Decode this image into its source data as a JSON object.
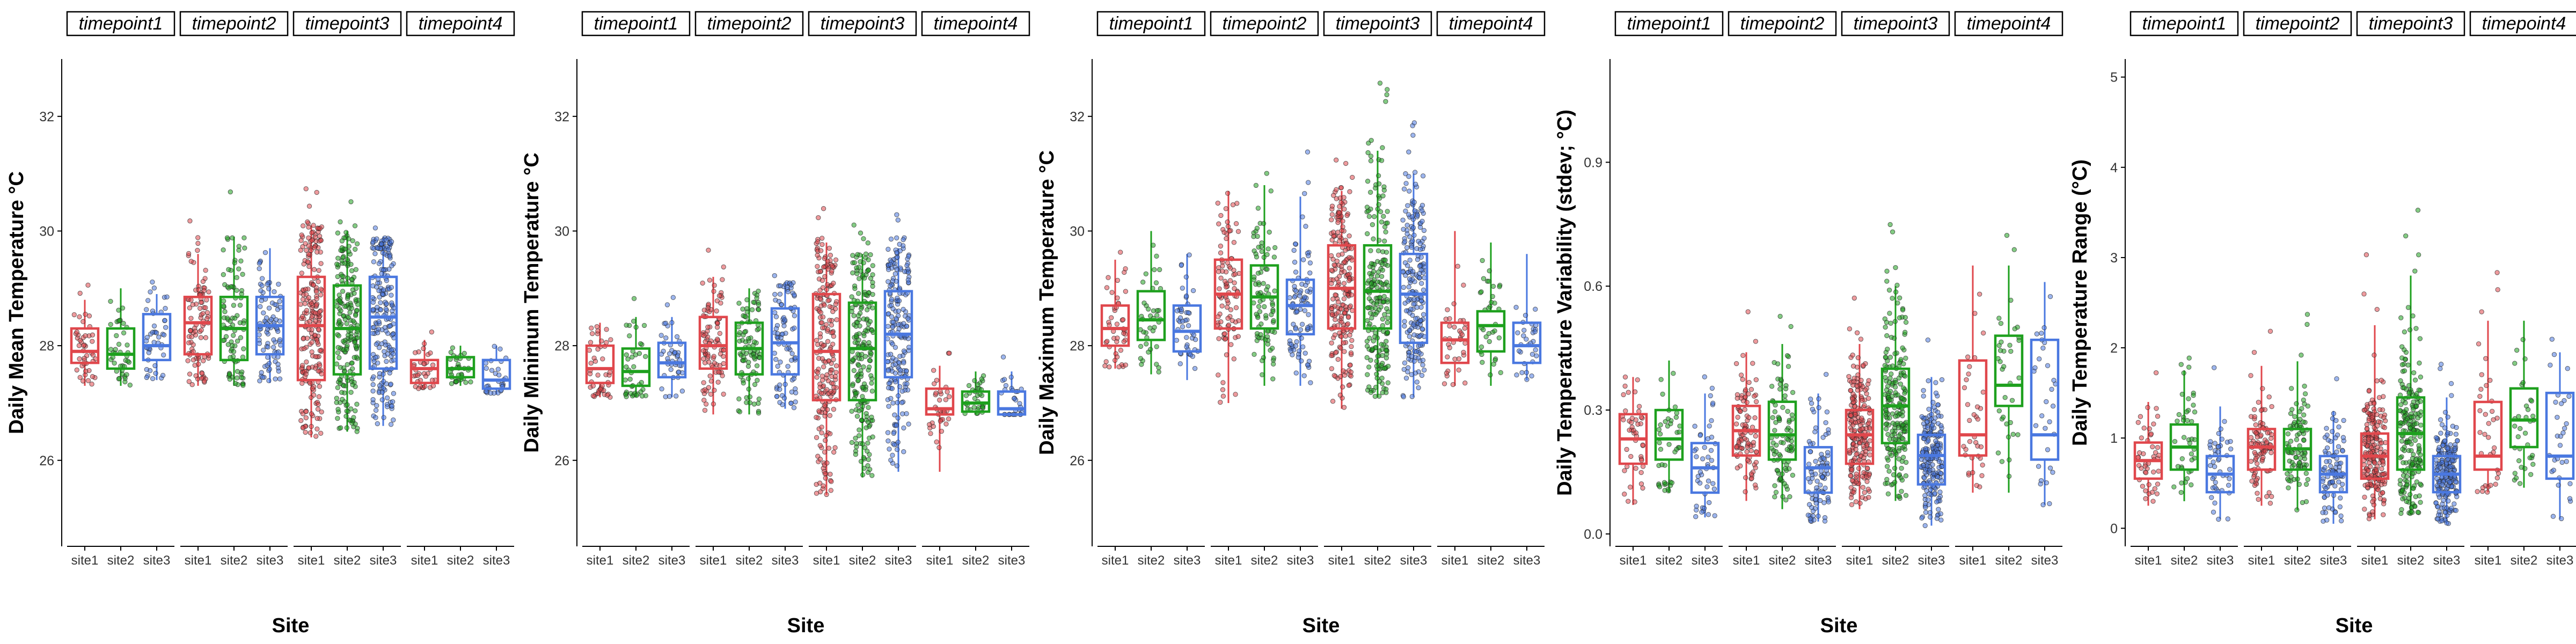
{
  "colors": {
    "site1": "#E0474C",
    "site2": "#1EA01E",
    "site3": "#4A78E0",
    "axis": "#000000",
    "strip_border": "#000000"
  },
  "chart_data": [
    {
      "type": "boxplot",
      "ylabel": "Daily Mean Temperature °C",
      "xlabel": "Site",
      "ylim": [
        24.5,
        33.0
      ],
      "yticks": [
        26,
        28,
        30,
        32
      ],
      "ytick_labels": [
        "26",
        "28",
        "30",
        "32"
      ],
      "facets": [
        "timepoint1",
        "timepoint2",
        "timepoint3",
        "timepoint4"
      ],
      "sites": [
        "site1",
        "site2",
        "site3"
      ],
      "boxes": [
        [
          [
            27.3,
            27.7,
            27.9,
            28.3,
            28.8
          ],
          [
            27.3,
            27.6,
            27.85,
            28.3,
            29.0
          ],
          [
            27.4,
            27.75,
            28.0,
            28.55,
            28.9
          ]
        ],
        [
          [
            27.3,
            27.85,
            28.4,
            28.85,
            29.6
          ],
          [
            27.3,
            27.75,
            28.3,
            28.85,
            29.9
          ],
          [
            27.35,
            27.85,
            28.35,
            28.85,
            29.7
          ]
        ],
        [
          [
            26.4,
            27.4,
            28.35,
            29.2,
            30.1
          ],
          [
            26.5,
            27.5,
            28.3,
            29.05,
            30.0
          ],
          [
            26.6,
            27.6,
            28.5,
            29.2,
            29.9
          ]
        ],
        [
          [
            27.25,
            27.35,
            27.6,
            27.75,
            28.1
          ],
          [
            27.3,
            27.45,
            27.6,
            27.8,
            28.0
          ],
          [
            27.15,
            27.25,
            27.4,
            27.75,
            28.0
          ]
        ]
      ],
      "points_per_box": [
        [
          45,
          40,
          45
        ],
        [
          95,
          90,
          90
        ],
        [
          210,
          205,
          205
        ],
        [
          35,
          35,
          30
        ]
      ]
    },
    {
      "type": "boxplot",
      "ylabel": "Daily Minimum Temperature °C",
      "xlabel": "Site",
      "ylim": [
        24.5,
        33.0
      ],
      "yticks": [
        26,
        28,
        30,
        32
      ],
      "ytick_labels": [
        "26",
        "28",
        "30",
        "32"
      ],
      "facets": [
        "timepoint1",
        "timepoint2",
        "timepoint3",
        "timepoint4"
      ],
      "sites": [
        "site1",
        "site2",
        "site3"
      ],
      "boxes": [
        [
          [
            27.1,
            27.35,
            27.6,
            28.0,
            28.4
          ],
          [
            27.1,
            27.3,
            27.55,
            27.95,
            28.5
          ],
          [
            27.1,
            27.45,
            27.7,
            28.05,
            28.5
          ]
        ],
        [
          [
            26.8,
            27.6,
            28.0,
            28.5,
            29.2
          ],
          [
            26.8,
            27.5,
            27.95,
            28.4,
            29.0
          ],
          [
            26.9,
            27.5,
            28.05,
            28.65,
            29.1
          ]
        ],
        [
          [
            25.4,
            27.05,
            27.9,
            28.9,
            29.8
          ],
          [
            25.7,
            27.05,
            27.95,
            28.75,
            29.6
          ],
          [
            25.8,
            27.45,
            28.2,
            28.95,
            29.7
          ]
        ],
        [
          [
            25.8,
            26.8,
            26.9,
            27.25,
            27.65
          ],
          [
            26.8,
            26.85,
            27.0,
            27.2,
            27.55
          ],
          [
            26.8,
            26.8,
            26.9,
            27.2,
            27.55
          ]
        ]
      ],
      "points_per_box": [
        [
          45,
          40,
          45
        ],
        [
          95,
          90,
          90
        ],
        [
          210,
          205,
          205
        ],
        [
          35,
          35,
          30
        ]
      ]
    },
    {
      "type": "boxplot",
      "ylabel": "Daily Maximum Temperature °C",
      "xlabel": "Site",
      "ylim": [
        24.5,
        33.0
      ],
      "yticks": [
        26,
        28,
        30,
        32
      ],
      "ytick_labels": [
        "26",
        "28",
        "30",
        "32"
      ],
      "facets": [
        "timepoint1",
        "timepoint2",
        "timepoint3",
        "timepoint4"
      ],
      "sites": [
        "site1",
        "site2",
        "site3"
      ],
      "boxes": [
        [
          [
            27.6,
            28.0,
            28.3,
            28.7,
            29.5
          ],
          [
            27.5,
            28.1,
            28.45,
            28.95,
            30.0
          ],
          [
            27.4,
            27.9,
            28.25,
            28.7,
            29.6
          ]
        ],
        [
          [
            27.0,
            28.3,
            28.9,
            29.5,
            30.7
          ],
          [
            27.3,
            28.3,
            28.85,
            29.4,
            30.8
          ],
          [
            27.3,
            28.2,
            28.7,
            29.15,
            30.6
          ]
        ],
        [
          [
            26.9,
            28.3,
            29.0,
            29.75,
            30.7
          ],
          [
            27.1,
            28.3,
            28.95,
            29.75,
            31.4
          ],
          [
            27.1,
            28.05,
            28.9,
            29.6,
            31.0
          ]
        ],
        [
          [
            27.3,
            27.7,
            28.1,
            28.4,
            30.0
          ],
          [
            27.3,
            27.9,
            28.35,
            28.6,
            29.8
          ],
          [
            27.4,
            27.7,
            28.0,
            28.4,
            29.6
          ]
        ]
      ],
      "points_per_box": [
        [
          45,
          40,
          45
        ],
        [
          95,
          90,
          90
        ],
        [
          210,
          205,
          205
        ],
        [
          35,
          35,
          30
        ]
      ]
    },
    {
      "type": "boxplot",
      "ylabel": "Daily Temperature Variability (stdev; °C)",
      "xlabel": "Site",
      "ylim": [
        -0.03,
        1.15
      ],
      "yticks": [
        0.0,
        0.3,
        0.6,
        0.9
      ],
      "ytick_labels": [
        "0.0",
        "0.3",
        "0.6",
        "0.9"
      ],
      "facets": [
        "timepoint1",
        "timepoint2",
        "timepoint3",
        "timepoint4"
      ],
      "sites": [
        "site1",
        "site2",
        "site3"
      ],
      "boxes": [
        [
          [
            0.07,
            0.17,
            0.23,
            0.29,
            0.38
          ],
          [
            0.1,
            0.18,
            0.23,
            0.3,
            0.42
          ],
          [
            0.04,
            0.1,
            0.16,
            0.22,
            0.34
          ]
        ],
        [
          [
            0.08,
            0.19,
            0.25,
            0.31,
            0.44
          ],
          [
            0.06,
            0.18,
            0.24,
            0.32,
            0.46
          ],
          [
            0.03,
            0.1,
            0.16,
            0.21,
            0.34
          ]
        ],
        [
          [
            0.06,
            0.17,
            0.24,
            0.3,
            0.46
          ],
          [
            0.08,
            0.22,
            0.31,
            0.4,
            0.6
          ],
          [
            0.02,
            0.12,
            0.19,
            0.24,
            0.38
          ]
        ],
        [
          [
            0.1,
            0.19,
            0.24,
            0.42,
            0.65
          ],
          [
            0.1,
            0.31,
            0.36,
            0.48,
            0.65
          ],
          [
            0.07,
            0.18,
            0.24,
            0.47,
            0.61
          ]
        ]
      ],
      "points_per_box": [
        [
          45,
          40,
          45
        ],
        [
          95,
          90,
          90
        ],
        [
          210,
          205,
          205
        ],
        [
          35,
          35,
          30
        ]
      ]
    },
    {
      "type": "boxplot",
      "ylabel": "Daily Temperature Range (°C)",
      "xlabel": "Site",
      "ylim": [
        -0.2,
        5.2
      ],
      "yticks": [
        0,
        1,
        2,
        3,
        4,
        5
      ],
      "ytick_labels": [
        "0",
        "1",
        "2",
        "3",
        "4",
        "5"
      ],
      "facets": [
        "timepoint1",
        "timepoint2",
        "timepoint3",
        "timepoint4"
      ],
      "sites": [
        "site1",
        "site2",
        "site3"
      ],
      "boxes": [
        [
          [
            0.25,
            0.55,
            0.75,
            0.95,
            1.4
          ],
          [
            0.3,
            0.65,
            0.9,
            1.15,
            1.75
          ],
          [
            0.1,
            0.4,
            0.6,
            0.8,
            1.35
          ]
        ],
        [
          [
            0.25,
            0.65,
            0.9,
            1.1,
            1.8
          ],
          [
            0.2,
            0.65,
            0.88,
            1.1,
            1.85
          ],
          [
            0.05,
            0.4,
            0.6,
            0.8,
            1.3
          ]
        ],
        [
          [
            0.1,
            0.55,
            0.8,
            1.05,
            2.25
          ],
          [
            0.15,
            0.65,
            1.05,
            1.45,
            2.8
          ],
          [
            0.05,
            0.4,
            0.6,
            0.8,
            1.45
          ]
        ],
        [
          [
            0.4,
            0.65,
            0.8,
            1.4,
            2.3
          ],
          [
            0.45,
            0.9,
            1.2,
            1.55,
            2.3
          ],
          [
            0.1,
            0.55,
            0.8,
            1.5,
            1.95
          ]
        ]
      ],
      "points_per_box": [
        [
          45,
          40,
          45
        ],
        [
          95,
          90,
          90
        ],
        [
          210,
          205,
          205
        ],
        [
          35,
          35,
          30
        ]
      ]
    }
  ]
}
